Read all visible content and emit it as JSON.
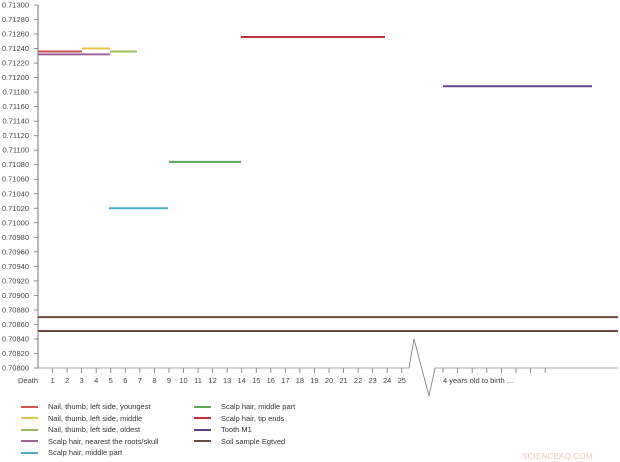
{
  "chart_data": {
    "type": "line",
    "title": "",
    "xlabel": "",
    "ylabel": "",
    "ylim": [
      0.708,
      0.713
    ],
    "y_ticks": [
      "0.71300",
      "0.71280",
      "0.71260",
      "0.71240",
      "0.71220",
      "0.71200",
      "0.71180",
      "0.71160",
      "0.71140",
      "0.71120",
      "0.71100",
      "0.71080",
      "0.71060",
      "0.71040",
      "0.71020",
      "0.71000",
      "0.70980",
      "0.70960",
      "0.70940",
      "0.70920",
      "0.70900",
      "0.70880",
      "0.70860",
      "0.70840",
      "0.70820",
      "0.70800"
    ],
    "x_ticks": [
      "Death",
      "1",
      "2",
      "3",
      "4",
      "5",
      "6",
      "7",
      "8",
      "9",
      "10",
      "11",
      "12",
      "13",
      "14",
      "15",
      "16",
      "17",
      "18",
      "19",
      "20",
      "21",
      "22",
      "23",
      "24",
      "25"
    ],
    "x_break_label": "4 years old to birth ...",
    "grid": false,
    "legend_position": "bottom",
    "series": [
      {
        "name": "Nail, thumb, left side, youngest",
        "color": "#c0504d",
        "x": [
          0,
          2
        ],
        "y": 0.71236
      },
      {
        "name": "Nail, thumb, left side, middle",
        "color": "#e8c444",
        "x": [
          2,
          4
        ],
        "y": 0.7124
      },
      {
        "name": "Nail, thumb, left side, oldest",
        "color": "#9bbb59",
        "x": [
          4,
          6
        ],
        "y": 0.71236
      },
      {
        "name": "Scalp hair, nearest the roots/skull",
        "color": "#a0629a",
        "x": [
          0,
          4
        ],
        "y": 0.71232
      },
      {
        "name": "Scalp hair, middle part",
        "color": "#4aacc6",
        "x": [
          4,
          8
        ],
        "y": 0.7102
      },
      {
        "name": "Scalp hair, middle part",
        "color": "#5aa85a",
        "x": [
          9,
          13
        ],
        "y": 0.71084
      },
      {
        "name": "Scalp hair, tip ends",
        "color": "#c0303a",
        "x": [
          13,
          23
        ],
        "y": 0.71256
      },
      {
        "name": "Tooth M1",
        "color": "#6b3f8f",
        "x": [
          "4 years old",
          "birth"
        ],
        "y": 0.71188
      },
      {
        "name": "Soil sample Egtved",
        "color": "#6b4a3f",
        "x": [
          "all"
        ],
        "y": 0.7087
      },
      {
        "name": "Soil sample Egtved",
        "color": "#6b4a3f",
        "x": [
          "all"
        ],
        "y": 0.70851
      }
    ]
  },
  "legend": {
    "left": [
      {
        "label": "Nail, thumb, left side, youngest",
        "color": "#d9534f"
      },
      {
        "label": "Nail, thumb, left side, middle",
        "color": "#e8c444"
      },
      {
        "label": "Nail, thumb, left side, oldest",
        "color": "#9bbb59"
      },
      {
        "label": "Scalp hair, nearest the roots/skull",
        "color": "#a0629a"
      },
      {
        "label": "Scalp hair, middle part",
        "color": "#4aacc6"
      }
    ],
    "right": [
      {
        "label": "Scalp hair, middle part",
        "color": "#5aa85a"
      },
      {
        "label": "Scalp hair, tip ends",
        "color": "#c0303a"
      },
      {
        "label": "Tooth M1",
        "color": "#5b3f8f"
      },
      {
        "label": "Soil sample Egtved",
        "color": "#6b4a3f"
      }
    ]
  },
  "watermark": "SCIENCEAQ.COM"
}
